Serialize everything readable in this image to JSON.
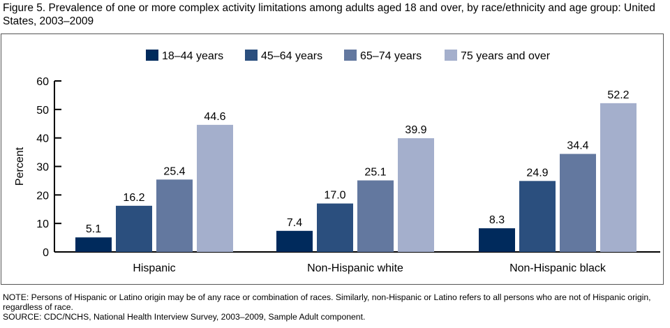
{
  "title": "Figure 5. Prevalence of one or more complex activity limitations among adults aged 18 and over, by race/ethnicity and age group: United States, 2003–2009",
  "notes": {
    "note": "NOTE: Persons of Hispanic or Latino origin may be of any race or combination of races. Similarly, non-Hispanic or Latino refers to all persons who are not of Hispanic origin, regardless of race.",
    "source": "SOURCE: CDC/NCHS, National Health Interview Survey, 2003–2009, Sample Adult component."
  },
  "chart_data": {
    "type": "bar",
    "title": "",
    "xlabel": "",
    "ylabel": "Percent",
    "ylim": [
      0,
      60
    ],
    "yticks": [
      0,
      10,
      20,
      30,
      40,
      50,
      60
    ],
    "grid": false,
    "legend_position": "top",
    "categories": [
      "Hispanic",
      "Non-Hispanic white",
      "Non-Hispanic black"
    ],
    "series": [
      {
        "name": "18–44 years",
        "values": [
          5.1,
          7.4,
          8.3
        ],
        "color": "#002a5c",
        "labels": [
          "5.1",
          "7.4",
          "8.3"
        ]
      },
      {
        "name": "45–64 years",
        "values": [
          16.2,
          17.0,
          24.9
        ],
        "color": "#2b4f7e",
        "labels": [
          "16.2",
          "17.0",
          "24.9"
        ]
      },
      {
        "name": "65–74 years",
        "values": [
          25.4,
          25.1,
          34.4
        ],
        "color": "#63789f",
        "labels": [
          "25.4",
          "25.1",
          "34.4"
        ]
      },
      {
        "name": "75 years and over",
        "values": [
          44.6,
          39.9,
          52.2
        ],
        "color": "#a4afcc",
        "labels": [
          "44.6",
          "39.9",
          "52.2"
        ]
      }
    ]
  }
}
